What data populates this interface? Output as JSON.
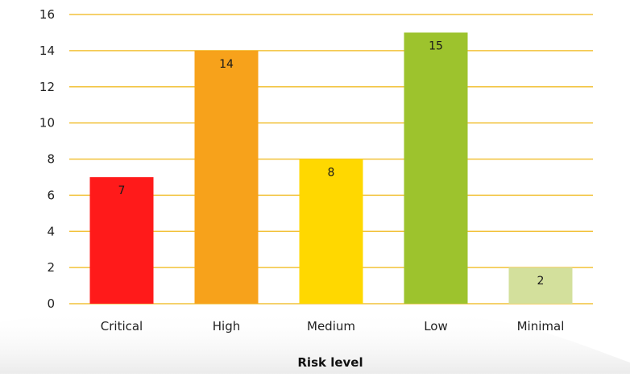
{
  "chart_data": {
    "type": "bar",
    "categories": [
      "Critical",
      "High",
      "Medium",
      "Low",
      "Minimal"
    ],
    "values": [
      7,
      14,
      8,
      15,
      2
    ],
    "bar_colors": [
      "#ff1a1a",
      "#f7a21b",
      "#ffd800",
      "#9dc32d",
      "#d3e09c"
    ],
    "data_labels": [
      "7",
      "14",
      "8",
      "15",
      "2"
    ],
    "title": "",
    "xlabel": "Risk level",
    "ylabel": "",
    "ylim": [
      0,
      16
    ],
    "yticks": [
      "0",
      "2",
      "4",
      "6",
      "8",
      "10",
      "12",
      "14",
      "16"
    ],
    "grid": true,
    "grid_color": "#f2c23a",
    "legend": "none"
  }
}
